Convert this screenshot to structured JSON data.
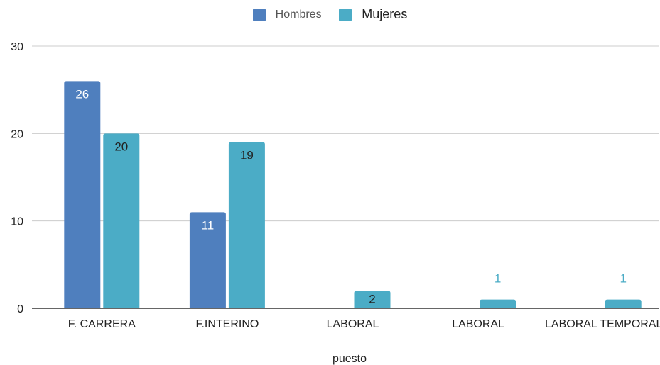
{
  "chart_data": {
    "type": "bar",
    "categories": [
      "F. CARRERA",
      "F.INTERINO",
      "LABORAL",
      "LABORAL",
      "LABORAL TEMPORAL"
    ],
    "series": [
      {
        "name": "Hombres",
        "values": [
          26,
          11,
          null,
          null,
          null
        ],
        "color": "#4f7fbe"
      },
      {
        "name": "Mujeres",
        "values": [
          20,
          19,
          2,
          1,
          1
        ],
        "color": "#4bacc6"
      }
    ],
    "data_labels": {
      "Hombres": [
        "26",
        "11",
        "",
        "",
        ""
      ],
      "Mujeres": [
        "20",
        "19",
        "2",
        "1",
        "1"
      ]
    },
    "xlabel": "puesto",
    "ylabel": "",
    "ylim": [
      0,
      30
    ],
    "yticks": [
      "0",
      "10",
      "20",
      "30"
    ],
    "grid": true,
    "legend_position": "top-center"
  },
  "colors": {
    "grid": "#cccccc",
    "axis": "#333333",
    "label_dark": "#222222",
    "label_light": "#ffffff",
    "label_outside": "#4bacc6"
  }
}
